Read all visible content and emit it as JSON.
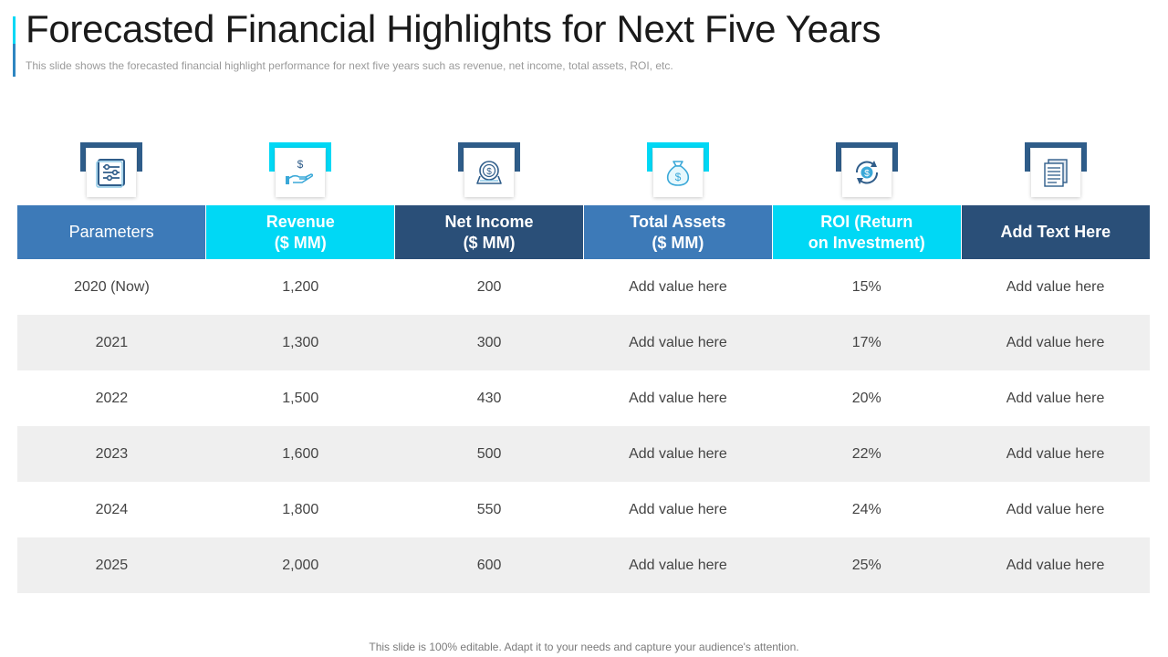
{
  "slide": {
    "title": "Forecasted Financial Highlights for Next Five Years",
    "subtitle": "This slide shows the forecasted financial highlight performance  for next five  years such as revenue,  net income, total assets, ROI, etc.",
    "footer": "This slide is 100% editable. Adapt it to your needs and capture your audience's attention."
  },
  "colors": {
    "dark_blue": "#2f5d8a",
    "mid_blue": "#3d7ab8",
    "cyan": "#00d8f5",
    "navy": "#2a4f78",
    "row_alt": "#efefef"
  },
  "icons": [
    "sliders-icon",
    "money-hand-icon",
    "money-globe-icon",
    "money-bag-icon",
    "refresh-dollar-icon",
    "documents-icon"
  ],
  "table": {
    "headers": [
      {
        "line1": "Parameters",
        "line2": ""
      },
      {
        "line1": "Revenue",
        "line2": "($ MM)"
      },
      {
        "line1": "Net Income",
        "line2": "($ MM)"
      },
      {
        "line1": "Total Assets",
        "line2": "($ MM)"
      },
      {
        "line1": "ROI (Return",
        "line2": "on Investment)"
      },
      {
        "line1": "Add Text Here",
        "line2": ""
      }
    ],
    "rows": [
      [
        "2020 (Now)",
        "1,200",
        "200",
        "Add value here",
        "15%",
        "Add value here"
      ],
      [
        "2021",
        "1,300",
        "300",
        "Add value here",
        "17%",
        "Add value here"
      ],
      [
        "2022",
        "1,500",
        "430",
        "Add value here",
        "20%",
        "Add value here"
      ],
      [
        "2023",
        "1,600",
        "500",
        "Add value here",
        "22%",
        "Add value here"
      ],
      [
        "2024",
        "1,800",
        "550",
        "Add value here",
        "24%",
        "Add value here"
      ],
      [
        "2025",
        "2,000",
        "600",
        "Add value here",
        "25%",
        "Add value here"
      ]
    ]
  }
}
